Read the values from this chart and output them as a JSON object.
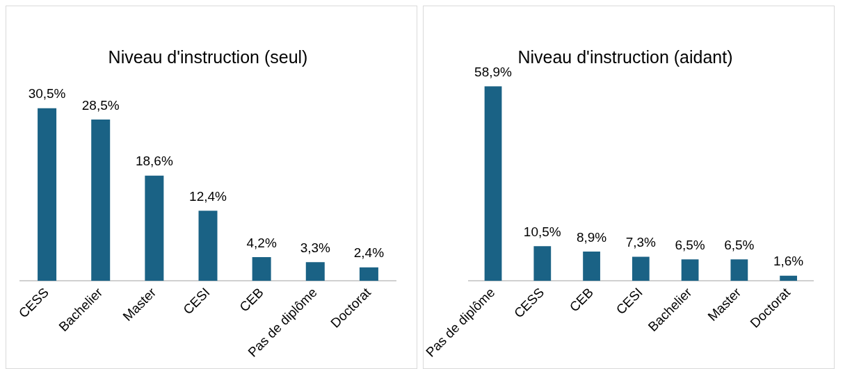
{
  "chart_data": [
    {
      "type": "bar",
      "title": "Niveau d'instruction (seul)",
      "categories": [
        "CESS",
        "Bachelier",
        "Master",
        "CESI",
        "CEB",
        "Pas de diplôme",
        "Doctorat"
      ],
      "values": [
        30.5,
        28.5,
        18.6,
        12.4,
        4.2,
        3.3,
        2.4
      ],
      "value_labels": [
        "30,5%",
        "28,5%",
        "18,6%",
        "12,4%",
        "4,2%",
        "3,3%",
        "2,4%"
      ],
      "color": "#1a6285",
      "grid": false,
      "legend": false,
      "tick_labels": "x"
    },
    {
      "type": "bar",
      "title": "Niveau d'instruction (aidant)",
      "categories": [
        "Pas de diplôme",
        "CESS",
        "CEB",
        "CESI",
        "Bachelier",
        "Master",
        "Doctorat"
      ],
      "values": [
        58.9,
        10.5,
        8.9,
        7.3,
        6.5,
        6.5,
        1.6
      ],
      "value_labels": [
        "58,9%",
        "10,5%",
        "8,9%",
        "7,3%",
        "6,5%",
        "6,5%",
        "1,6%"
      ],
      "color": "#1a6285",
      "grid": false,
      "legend": false,
      "tick_labels": "x"
    }
  ]
}
